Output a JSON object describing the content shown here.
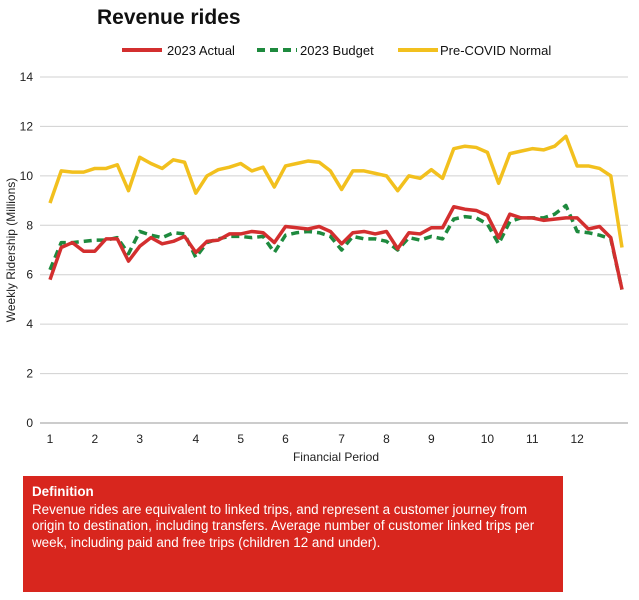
{
  "chart_data": {
    "type": "line",
    "title": "Revenue rides",
    "xlabel": "Financial Period",
    "ylabel": "Weekly Ridership (Millions)",
    "ylim": [
      0,
      14
    ],
    "yticks": [
      "0",
      "2",
      "4",
      "6",
      "8",
      "10",
      "12",
      "14"
    ],
    "xticks": [
      {
        "label": "1",
        "week": 0
      },
      {
        "label": "2",
        "week": 4
      },
      {
        "label": "3",
        "week": 8
      },
      {
        "label": "4",
        "week": 13
      },
      {
        "label": "5",
        "week": 17
      },
      {
        "label": "6",
        "week": 21
      },
      {
        "label": "7",
        "week": 26
      },
      {
        "label": "8",
        "week": 30
      },
      {
        "label": "9",
        "week": 34
      },
      {
        "label": "10",
        "week": 39
      },
      {
        "label": "11",
        "week": 43
      },
      {
        "label": "12",
        "week": 47
      }
    ],
    "legend_position": "top",
    "grid": true,
    "series": [
      {
        "name": "2023 Actual",
        "color": "#d32f2f",
        "dash": false,
        "values": [
          5.8,
          7.1,
          7.3,
          6.95,
          6.95,
          7.45,
          7.45,
          6.55,
          7.15,
          7.5,
          7.25,
          7.35,
          7.55,
          6.9,
          7.35,
          7.4,
          7.65,
          7.65,
          7.75,
          7.7,
          7.3,
          7.95,
          7.9,
          7.85,
          7.95,
          7.75,
          7.25,
          7.7,
          7.75,
          7.65,
          7.75,
          7.05,
          7.7,
          7.65,
          7.9,
          7.9,
          8.75,
          8.65,
          8.6,
          8.4,
          7.5,
          8.45,
          8.3,
          8.3,
          8.2,
          8.25,
          8.3,
          8.3,
          7.85,
          7.95,
          7.5,
          5.4
        ]
      },
      {
        "name": "2023 Budget",
        "color": "#1e8a3e",
        "dash": true,
        "values": [
          6.2,
          7.3,
          7.3,
          7.35,
          7.4,
          7.4,
          7.5,
          6.85,
          7.75,
          7.6,
          7.5,
          7.7,
          7.65,
          6.7,
          7.3,
          7.45,
          7.55,
          7.55,
          7.5,
          7.55,
          6.9,
          7.6,
          7.7,
          7.75,
          7.7,
          7.55,
          7.0,
          7.55,
          7.45,
          7.45,
          7.35,
          7.0,
          7.5,
          7.4,
          7.55,
          7.45,
          8.25,
          8.35,
          8.3,
          8.05,
          7.25,
          8.15,
          8.3,
          8.3,
          8.3,
          8.45,
          8.8,
          7.75,
          7.7,
          7.6,
          7.45,
          5.4
        ]
      },
      {
        "name": "Pre-COVID Normal",
        "color": "#f2c01e",
        "dash": false,
        "values": [
          8.9,
          10.2,
          10.15,
          10.15,
          10.3,
          10.3,
          10.45,
          9.4,
          10.75,
          10.5,
          10.3,
          10.65,
          10.55,
          9.3,
          10.0,
          10.25,
          10.35,
          10.5,
          10.2,
          10.35,
          9.55,
          10.4,
          10.5,
          10.6,
          10.55,
          10.2,
          9.45,
          10.2,
          10.2,
          10.1,
          10.0,
          9.4,
          10.0,
          9.9,
          10.25,
          9.9,
          11.1,
          11.2,
          11.15,
          10.95,
          9.7,
          10.9,
          11.0,
          11.1,
          11.05,
          11.2,
          11.6,
          10.4,
          10.4,
          10.3,
          10.0,
          7.1
        ]
      }
    ]
  },
  "definition": {
    "heading": "Definition",
    "text": "Revenue rides are equivalent to linked trips, and represent a customer journey from origin to destination, including transfers. Average number of customer linked trips per week, including paid and free trips (children 12 and under)."
  }
}
